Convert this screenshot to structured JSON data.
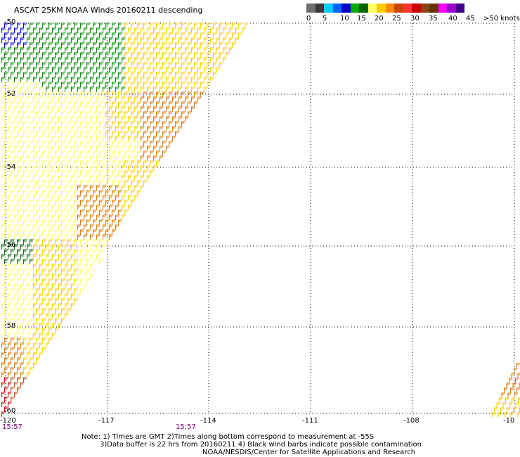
{
  "title": "ASCAT 25KM NOAA Winds 20160211 descending",
  "legend": {
    "colors": [
      "#6e6e6e",
      "#3a3a3a",
      "#00ccff",
      "#0066ff",
      "#0000cc",
      "#00aa00",
      "#006600",
      "#ffff66",
      "#ffcc00",
      "#ff8800",
      "#cc4400",
      "#ff3333",
      "#cc0000",
      "#8b4513",
      "#663300",
      "#ff00ff",
      "#9900cc",
      "#440088"
    ],
    "labels": [
      "0",
      "5",
      "10",
      "15",
      "20",
      "25",
      "30",
      "35",
      "40",
      "45",
      ">50 knots"
    ]
  },
  "map": {
    "lat_labels": [
      "-50",
      "-52",
      "-54",
      "-56",
      "-58",
      "-60"
    ],
    "lon_labels": [
      "-120",
      "-117",
      "-114",
      "-111",
      "-108",
      "-10"
    ],
    "time_labels": [
      "15:57",
      "15:57"
    ],
    "wind_colors": {
      "green": "#008800",
      "dark_green": "#006600",
      "blue": "#0000cc",
      "yellow": "#ffff66",
      "gold": "#ffcc00",
      "orange": "#dd7700",
      "dark_orange": "#cc4400",
      "red": "#cc0000"
    }
  },
  "notes": {
    "line1": "Note: 1) Times are GMT 2)Times along bottom correspond to measurement at -55S",
    "line2": "3)Data buffer is 22 hrs from 20160211 4) Black wind barbs indicate possible contamination",
    "line3": "NOAA/NESDIS/Center for Satellite Applications and Research"
  }
}
